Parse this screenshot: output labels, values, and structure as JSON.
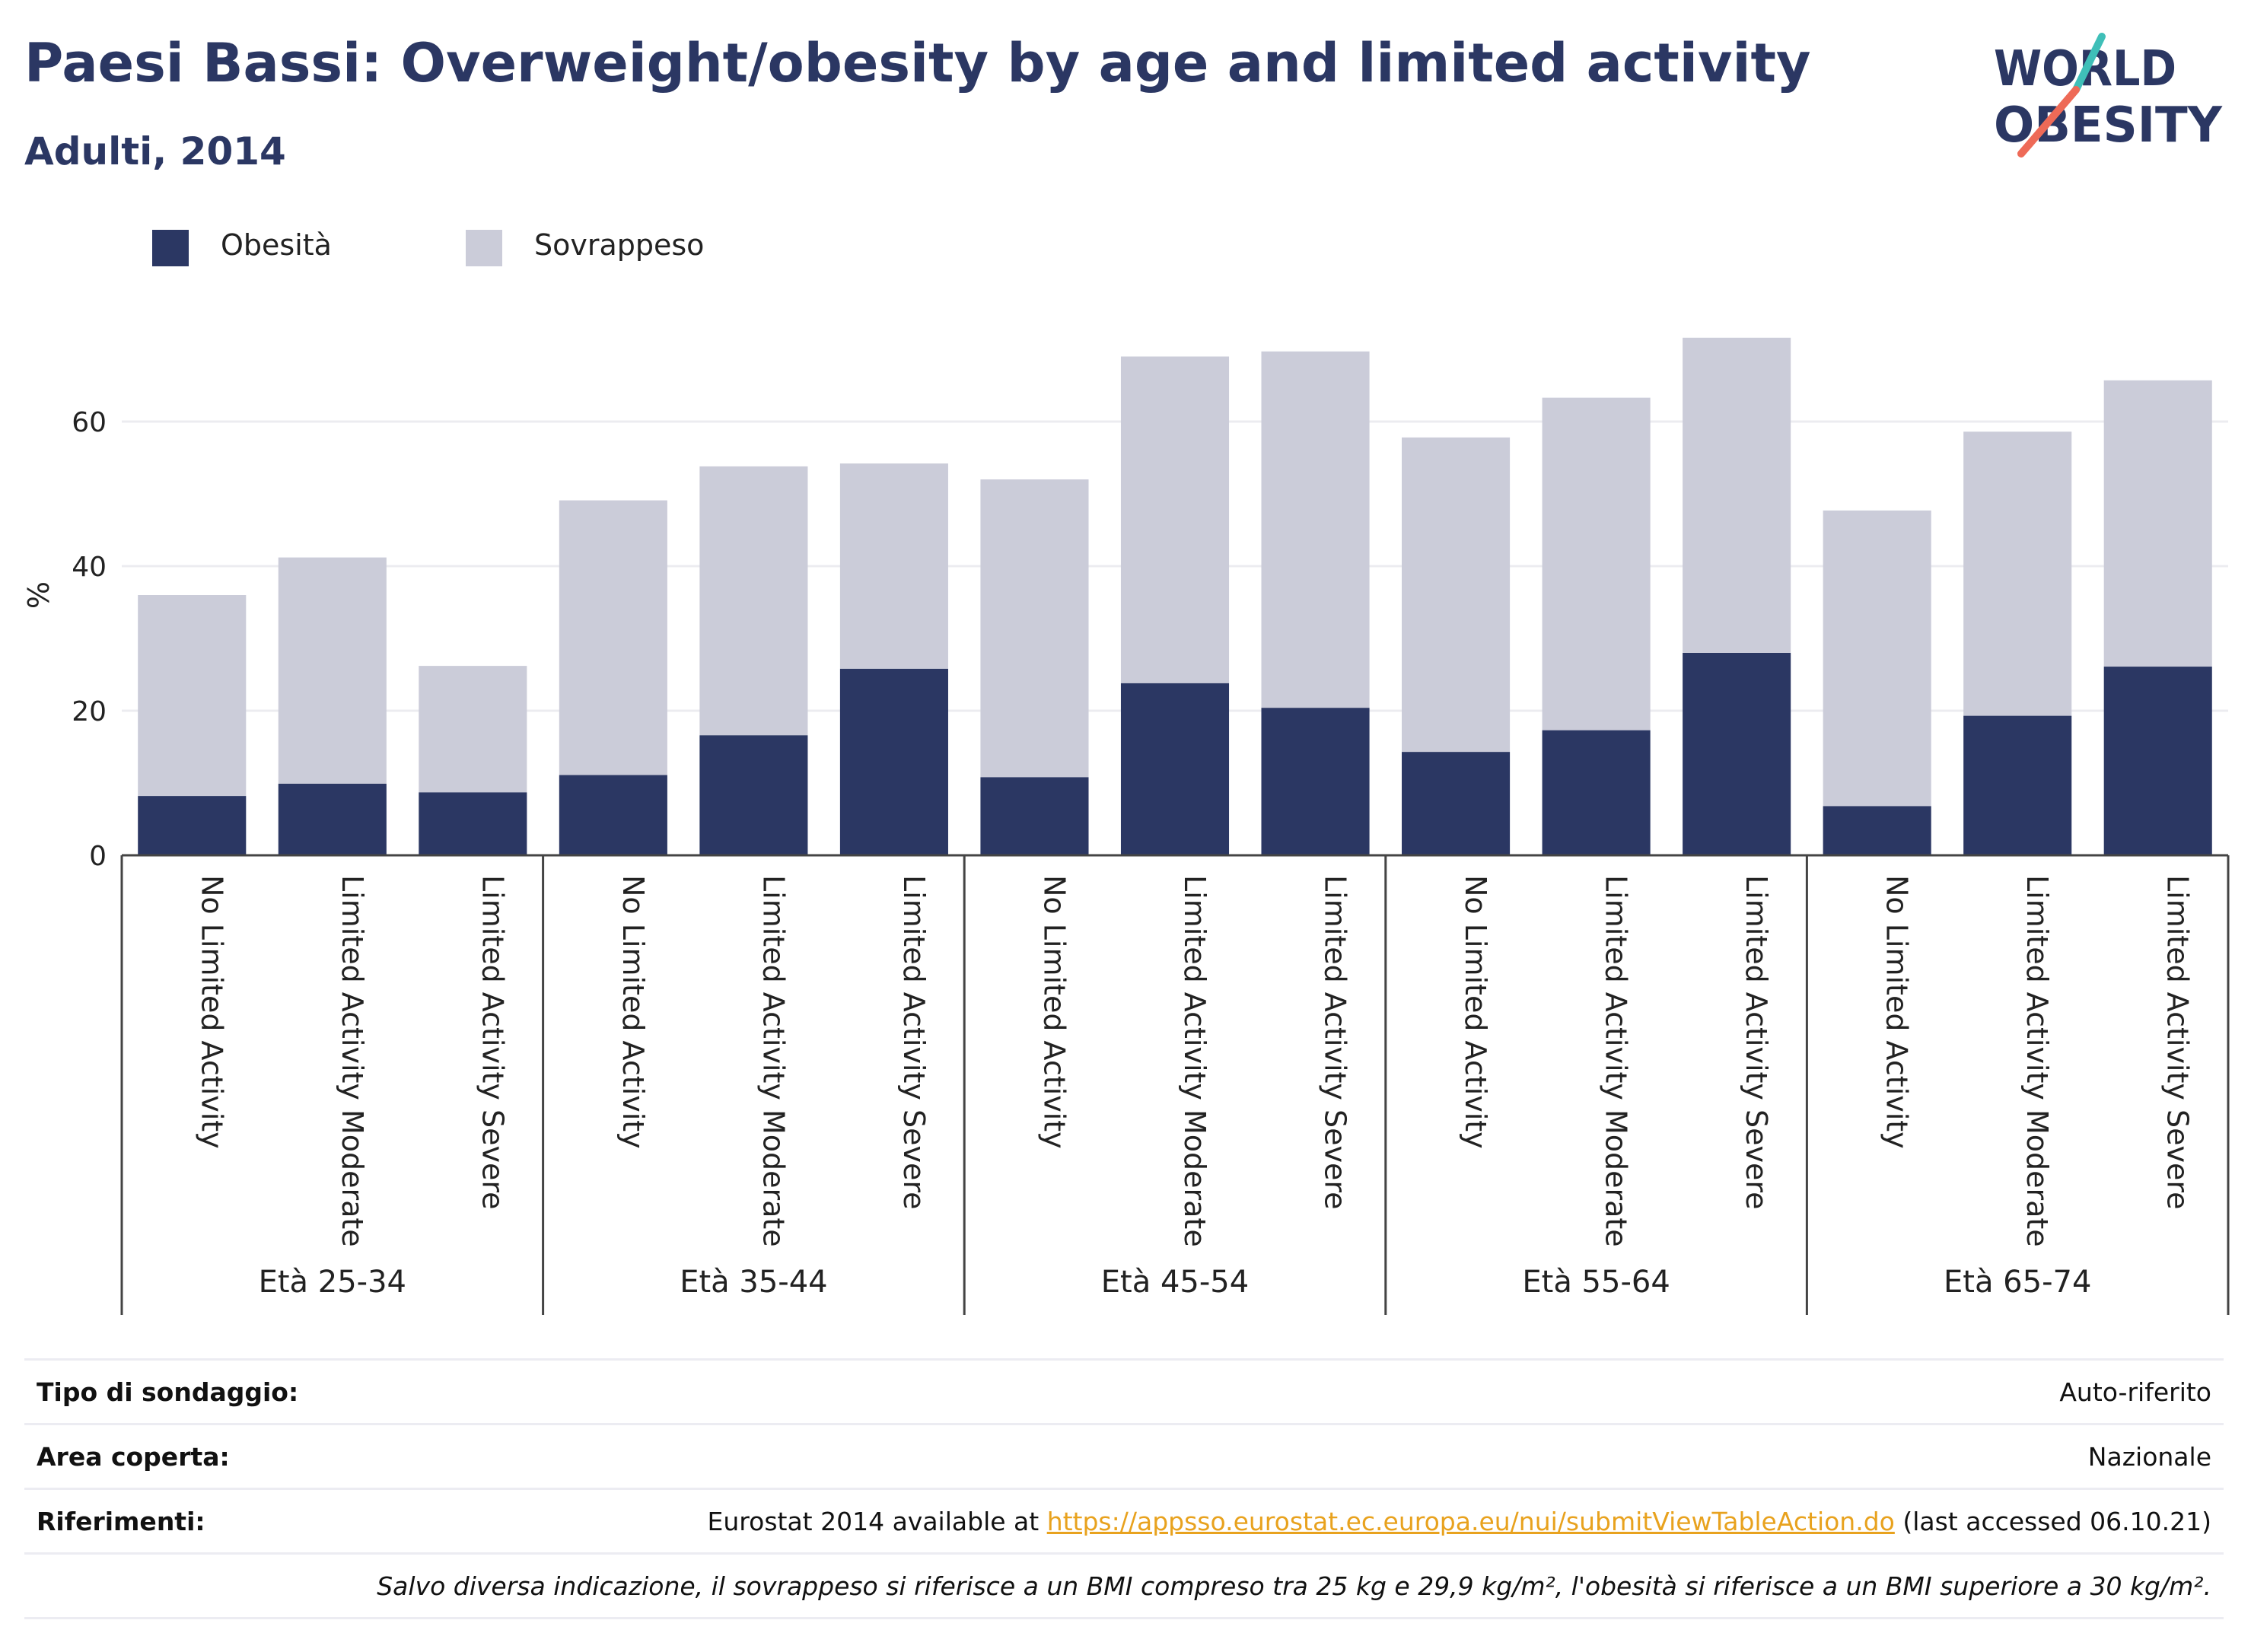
{
  "header": {
    "title": "Paesi Bassi: Overweight/obesity by age and limited activity",
    "subtitle": "Adulti, 2014",
    "logo_line1": "WORLD",
    "logo_line2": "OBESITY"
  },
  "colors": {
    "obesity": "#2b3763",
    "overweight": "#cbccd9",
    "title": "#2b3763",
    "link": "#e8a21e",
    "logo_teal": "#3fbfb8",
    "logo_coral": "#ee6a57"
  },
  "chart_data": {
    "type": "bar",
    "stacked": true,
    "ylabel": "%",
    "ylim": [
      0,
      76
    ],
    "yticks": [
      0,
      20,
      40,
      60
    ],
    "grid": true,
    "legend": "top-left",
    "groups": [
      {
        "label": "Età 25-34",
        "categories": [
          "No Limited Activity",
          "Limited Activity Moderate",
          "Limited Activity Severe"
        ]
      },
      {
        "label": "Età 35-44",
        "categories": [
          "No Limited Activity",
          "Limited Activity Moderate",
          "Limited Activity Severe"
        ]
      },
      {
        "label": "Età 45-54",
        "categories": [
          "No Limited Activity",
          "Limited Activity Moderate",
          "Limited Activity Severe"
        ]
      },
      {
        "label": "Età 55-64",
        "categories": [
          "No Limited Activity",
          "Limited Activity Moderate",
          "Limited Activity Severe"
        ]
      },
      {
        "label": "Età 65-74",
        "categories": [
          "No Limited Activity",
          "Limited Activity Moderate",
          "Limited Activity Severe"
        ]
      }
    ],
    "series": [
      {
        "name": "Obesità",
        "values": [
          8.2,
          9.9,
          8.7,
          11.1,
          16.6,
          25.8,
          10.8,
          23.8,
          20.4,
          14.3,
          17.3,
          28.0,
          6.8,
          19.3,
          26.1
        ]
      },
      {
        "name": "Sovrappeso",
        "values": [
          27.8,
          31.3,
          17.5,
          38.0,
          37.2,
          28.4,
          41.2,
          45.2,
          49.3,
          43.5,
          46.0,
          43.6,
          40.9,
          39.3,
          39.6
        ]
      }
    ]
  },
  "meta": {
    "survey_label": "Tipo di sondaggio:",
    "survey_value": "Auto-riferito",
    "area_label": "Area coperta:",
    "area_value": "Nazionale",
    "refs_label": "Riferimenti:",
    "refs_prefix": "Eurostat 2014 available at ",
    "refs_link": "https://appsso.eurostat.ec.europa.eu/nui/submitViewTableAction.do",
    "refs_suffix": " (last accessed 06.10.21)",
    "note": "Salvo diversa indicazione, il sovrappeso si riferisce a un BMI compreso tra 25 kg e 29,9 kg/m², l'obesità si riferisce a un BMI superiore a 30 kg/m²."
  }
}
